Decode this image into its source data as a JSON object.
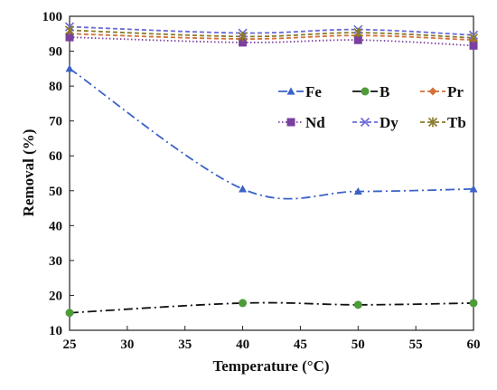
{
  "chart_data": {
    "type": "line",
    "xlabel": "Temperature (°C)",
    "ylabel": "Removal (%)",
    "xlim": [
      25,
      60
    ],
    "ylim": [
      10,
      100
    ],
    "xticks": [
      25,
      30,
      35,
      40,
      45,
      50,
      55,
      60
    ],
    "yticks": [
      10,
      20,
      30,
      40,
      50,
      60,
      70,
      80,
      90,
      100
    ],
    "grid": false,
    "legend_position": "top-right",
    "x": [
      25,
      40,
      50,
      60
    ],
    "series": [
      {
        "name": "Fe",
        "values": [
          85,
          50.5,
          49.8,
          50.5
        ],
        "color": "#3a62c8",
        "marker": "triangle",
        "line": "dash-dot"
      },
      {
        "name": "B",
        "values": [
          15,
          17.8,
          17.3,
          17.8
        ],
        "color": "#4f9a3a",
        "marker": "circle",
        "line": "dash-dot-black"
      },
      {
        "name": "Pr",
        "values": [
          95,
          93.5,
          94.5,
          93.2
        ],
        "color": "#d2723a",
        "marker": "diamond",
        "line": "dash"
      },
      {
        "name": "Nd",
        "values": [
          94,
          92.5,
          93.2,
          91.6
        ],
        "color": "#7b3fa0",
        "marker": "square",
        "line": "dot"
      },
      {
        "name": "Dy",
        "values": [
          97,
          95.2,
          96.2,
          94.6
        ],
        "color": "#6a6ad8",
        "marker": "x",
        "line": "dash"
      },
      {
        "name": "Tb",
        "values": [
          96,
          94.2,
          95.3,
          93.8
        ],
        "color": "#8a7a2a",
        "marker": "star",
        "line": "dash"
      }
    ]
  }
}
